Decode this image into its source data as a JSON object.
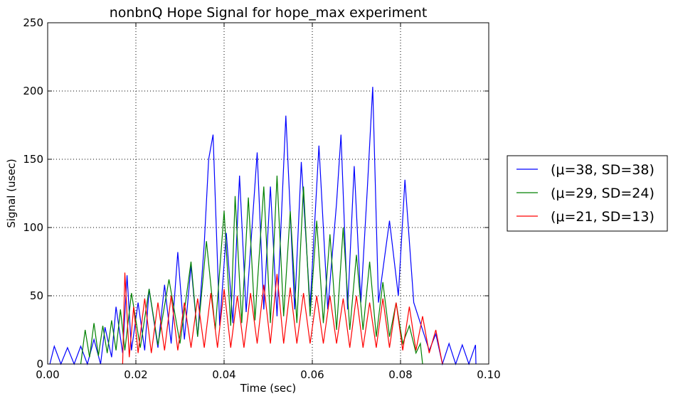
{
  "chart_data": {
    "type": "line",
    "title": "nonbnQ Hope Signal for hope_max experiment",
    "xlabel": "Time (sec)",
    "ylabel": "Signal (usec)",
    "xlim": [
      0.0,
      0.1
    ],
    "ylim": [
      0,
      250
    ],
    "xticks": [
      "0.00",
      "0.02",
      "0.04",
      "0.06",
      "0.08",
      "0.10"
    ],
    "yticks": [
      "0",
      "50",
      "100",
      "150",
      "200",
      "250"
    ],
    "grid": true,
    "legend_position": "right",
    "series": [
      {
        "name": "(μ=38, SD=38)",
        "color": "#0000ff",
        "points": [
          [
            0.0005,
            0
          ],
          [
            0.0015,
            13
          ],
          [
            0.003,
            0
          ],
          [
            0.0045,
            12
          ],
          [
            0.006,
            0
          ],
          [
            0.0075,
            13
          ],
          [
            0.009,
            0
          ],
          [
            0.0105,
            18
          ],
          [
            0.012,
            0
          ],
          [
            0.013,
            27
          ],
          [
            0.0145,
            5
          ],
          [
            0.0155,
            42
          ],
          [
            0.017,
            8
          ],
          [
            0.018,
            65
          ],
          [
            0.019,
            10
          ],
          [
            0.0205,
            45
          ],
          [
            0.022,
            10
          ],
          [
            0.023,
            55
          ],
          [
            0.025,
            12
          ],
          [
            0.0265,
            58
          ],
          [
            0.028,
            15
          ],
          [
            0.0295,
            82
          ],
          [
            0.031,
            18
          ],
          [
            0.0325,
            72
          ],
          [
            0.034,
            20
          ],
          [
            0.0355,
            88
          ],
          [
            0.0365,
            150
          ],
          [
            0.0375,
            168
          ],
          [
            0.039,
            28
          ],
          [
            0.0405,
            96
          ],
          [
            0.042,
            30
          ],
          [
            0.0435,
            138
          ],
          [
            0.045,
            38
          ],
          [
            0.0465,
            108
          ],
          [
            0.0475,
            155
          ],
          [
            0.049,
            40
          ],
          [
            0.0505,
            130
          ],
          [
            0.052,
            35
          ],
          [
            0.054,
            182
          ],
          [
            0.056,
            40
          ],
          [
            0.0575,
            148
          ],
          [
            0.0595,
            42
          ],
          [
            0.0615,
            160
          ],
          [
            0.0635,
            40
          ],
          [
            0.0655,
            118
          ],
          [
            0.0665,
            168
          ],
          [
            0.068,
            40
          ],
          [
            0.0695,
            145
          ],
          [
            0.071,
            45
          ],
          [
            0.0725,
            130
          ],
          [
            0.0737,
            203
          ],
          [
            0.075,
            45
          ],
          [
            0.0775,
            105
          ],
          [
            0.0795,
            50
          ],
          [
            0.081,
            135
          ],
          [
            0.083,
            45
          ],
          [
            0.0845,
            30
          ],
          [
            0.0865,
            10
          ],
          [
            0.088,
            22
          ],
          [
            0.0895,
            0
          ],
          [
            0.091,
            15
          ],
          [
            0.0925,
            0
          ],
          [
            0.094,
            14
          ],
          [
            0.0955,
            0
          ],
          [
            0.097,
            14
          ],
          [
            0.0971,
            0
          ]
        ]
      },
      {
        "name": "(μ=29, SD=24)",
        "color": "#008000",
        "points": [
          [
            0.0075,
            0
          ],
          [
            0.0085,
            25
          ],
          [
            0.0095,
            5
          ],
          [
            0.0105,
            30
          ],
          [
            0.0115,
            6
          ],
          [
            0.0125,
            28
          ],
          [
            0.0135,
            8
          ],
          [
            0.0145,
            32
          ],
          [
            0.0155,
            10
          ],
          [
            0.0165,
            40
          ],
          [
            0.0175,
            10
          ],
          [
            0.019,
            52
          ],
          [
            0.021,
            12
          ],
          [
            0.023,
            55
          ],
          [
            0.025,
            14
          ],
          [
            0.0275,
            62
          ],
          [
            0.03,
            15
          ],
          [
            0.0325,
            75
          ],
          [
            0.034,
            20
          ],
          [
            0.036,
            90
          ],
          [
            0.038,
            25
          ],
          [
            0.04,
            112
          ],
          [
            0.0415,
            28
          ],
          [
            0.0425,
            123
          ],
          [
            0.044,
            30
          ],
          [
            0.0455,
            122
          ],
          [
            0.047,
            32
          ],
          [
            0.049,
            130
          ],
          [
            0.0505,
            30
          ],
          [
            0.052,
            138
          ],
          [
            0.0535,
            35
          ],
          [
            0.055,
            112
          ],
          [
            0.0565,
            30
          ],
          [
            0.058,
            130
          ],
          [
            0.0595,
            35
          ],
          [
            0.061,
            105
          ],
          [
            0.0625,
            30
          ],
          [
            0.064,
            95
          ],
          [
            0.0655,
            25
          ],
          [
            0.067,
            100
          ],
          [
            0.0685,
            25
          ],
          [
            0.07,
            80
          ],
          [
            0.0715,
            25
          ],
          [
            0.073,
            75
          ],
          [
            0.0745,
            20
          ],
          [
            0.076,
            60
          ],
          [
            0.0775,
            20
          ],
          [
            0.079,
            45
          ],
          [
            0.0805,
            15
          ],
          [
            0.082,
            28
          ],
          [
            0.0835,
            8
          ],
          [
            0.0845,
            15
          ],
          [
            0.085,
            0
          ]
        ]
      },
      {
        "name": "(μ=21, SD=13)",
        "color": "#ff0000",
        "points": [
          [
            0.017,
            0
          ],
          [
            0.0175,
            67
          ],
          [
            0.0185,
            5
          ],
          [
            0.0195,
            42
          ],
          [
            0.0205,
            8
          ],
          [
            0.022,
            48
          ],
          [
            0.0235,
            8
          ],
          [
            0.025,
            45
          ],
          [
            0.0265,
            10
          ],
          [
            0.028,
            50
          ],
          [
            0.0295,
            10
          ],
          [
            0.031,
            45
          ],
          [
            0.0325,
            12
          ],
          [
            0.034,
            48
          ],
          [
            0.0355,
            12
          ],
          [
            0.037,
            52
          ],
          [
            0.0385,
            12
          ],
          [
            0.04,
            55
          ],
          [
            0.0415,
            12
          ],
          [
            0.043,
            50
          ],
          [
            0.0445,
            12
          ],
          [
            0.046,
            52
          ],
          [
            0.0475,
            15
          ],
          [
            0.049,
            58
          ],
          [
            0.0505,
            15
          ],
          [
            0.052,
            66
          ],
          [
            0.0535,
            15
          ],
          [
            0.055,
            56
          ],
          [
            0.0565,
            15
          ],
          [
            0.058,
            52
          ],
          [
            0.0595,
            15
          ],
          [
            0.061,
            50
          ],
          [
            0.0625,
            15
          ],
          [
            0.064,
            50
          ],
          [
            0.0655,
            15
          ],
          [
            0.067,
            48
          ],
          [
            0.0685,
            12
          ],
          [
            0.07,
            50
          ],
          [
            0.0715,
            12
          ],
          [
            0.073,
            45
          ],
          [
            0.0745,
            12
          ],
          [
            0.076,
            48
          ],
          [
            0.0775,
            12
          ],
          [
            0.079,
            45
          ],
          [
            0.0805,
            10
          ],
          [
            0.082,
            42
          ],
          [
            0.0835,
            10
          ],
          [
            0.085,
            35
          ],
          [
            0.0865,
            8
          ],
          [
            0.088,
            25
          ],
          [
            0.0895,
            0
          ]
        ]
      }
    ]
  }
}
